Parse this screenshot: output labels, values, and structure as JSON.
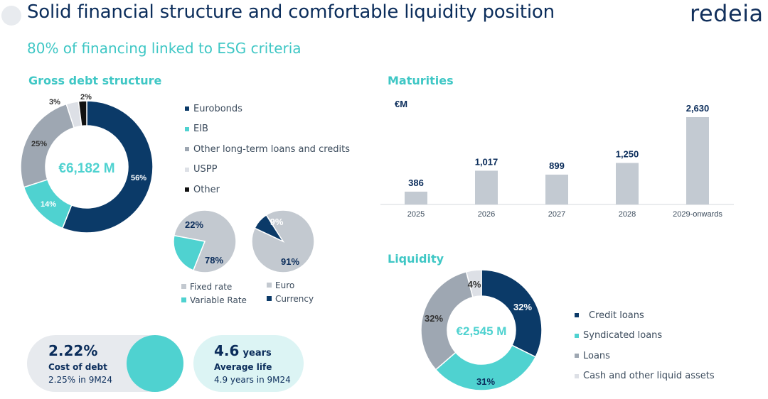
{
  "header": {
    "title": "Solid financial structure and comfortable liquidity position",
    "logo": "redeia",
    "subtitle": "80% of financing linked to ESG criteria"
  },
  "colors": {
    "navy": "#0b3a68",
    "teal": "#4fd2d0",
    "gray": "#9ea7b2",
    "light_gray": "#dde0e6",
    "black": "#111111",
    "bar_gray": "#c3cad2",
    "accent_text": "#3fc7c5"
  },
  "chart_data": [
    {
      "id": "gross-debt",
      "type": "pie",
      "title": "Gross debt structure",
      "center_label": "€6,182 M",
      "labels": [
        "Eurobonds",
        "EIB",
        "Other long-term loans and credits",
        "USPP",
        "Other"
      ],
      "values": [
        56,
        14,
        25,
        3,
        2
      ],
      "value_labels": [
        "56%",
        "14%",
        "25%",
        "3%",
        "2%"
      ],
      "colors": [
        "#0b3a68",
        "#4fd2d0",
        "#9ea7b2",
        "#dde0e6",
        "#111111"
      ]
    },
    {
      "id": "rate-type",
      "type": "pie",
      "labels": [
        "Fixed rate",
        "Variable Rate"
      ],
      "values": [
        78,
        22
      ],
      "value_labels": [
        "78%",
        "22%"
      ],
      "colors": [
        "#c3c9d0",
        "#4fd2d0"
      ]
    },
    {
      "id": "currency",
      "type": "pie",
      "labels": [
        "Euro",
        "Currency"
      ],
      "values": [
        91,
        9
      ],
      "value_labels": [
        "91%",
        "9%"
      ],
      "colors": [
        "#c3c9d0",
        "#0b3a68"
      ]
    },
    {
      "id": "maturities",
      "type": "bar",
      "title": "Maturities",
      "unit": "€M",
      "categories": [
        "2025",
        "2026",
        "2027",
        "2028",
        "2029-onwards"
      ],
      "values": [
        386,
        1017,
        899,
        1250,
        2630
      ],
      "value_labels": [
        "386",
        "1,017",
        "899",
        "1,250",
        "2,630"
      ],
      "ylim": [
        0,
        2630
      ]
    },
    {
      "id": "liquidity",
      "type": "pie",
      "title": "Liquidity",
      "center_label": "€2,545 M",
      "labels": [
        "Credit loans",
        "Syndicated loans",
        "Loans",
        "Cash and other liquid assets"
      ],
      "values": [
        32,
        31,
        32,
        4
      ],
      "value_labels": [
        "32%",
        "31%",
        "32%",
        "4%"
      ],
      "colors": [
        "#0b3a68",
        "#4fd2d0",
        "#9ea7b2",
        "#dde0e6"
      ]
    }
  ],
  "kpis": [
    {
      "value": "2.22%",
      "label": "Cost of debt",
      "sub": "2.25% in 9M24"
    },
    {
      "value": "4.6",
      "unit": "years",
      "label": "Average life",
      "sub": "4.9 years in 9M24"
    }
  ]
}
